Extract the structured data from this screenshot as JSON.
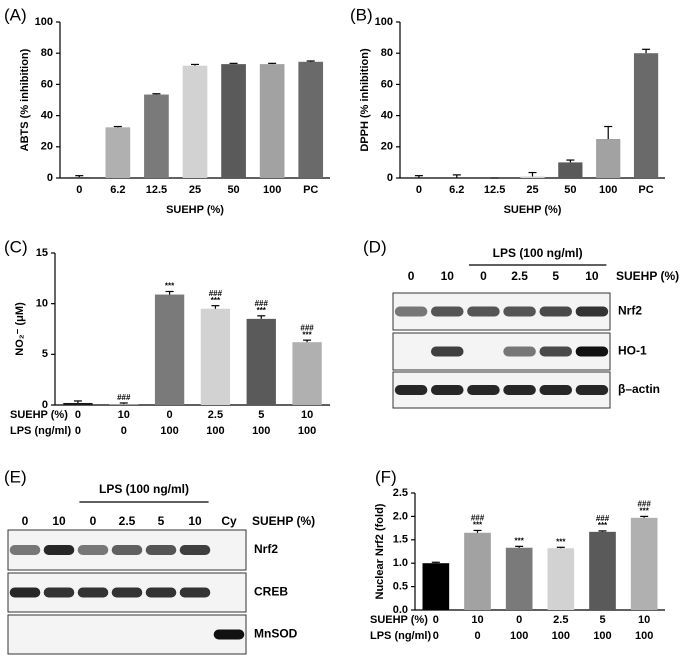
{
  "chart_data": [
    {
      "type": "bar",
      "panel": "(A)",
      "ylabel": "ABTS (% inhibition)",
      "xlabel": "SUEHP  (%)",
      "categories": [
        "0",
        "6.2",
        "12.5",
        "25",
        "50",
        "100",
        "PC"
      ],
      "values": [
        0.5,
        32.5,
        53.5,
        72,
        73,
        73,
        74.5
      ],
      "errors": [
        1,
        0.5,
        0.5,
        0.8,
        0.5,
        0.5,
        0.5
      ],
      "colors": [
        "#3a3a3a",
        "#b0b0b0",
        "#7a7a7a",
        "#d2d2d2",
        "#5a5a5a",
        "#a2a2a2",
        "#6a6a6a"
      ],
      "ylim": [
        0,
        100
      ],
      "yticks": [
        0,
        20,
        40,
        60,
        80,
        100
      ]
    },
    {
      "type": "bar",
      "panel": "(B)",
      "ylabel": "DPPH  (% inhibition)",
      "xlabel": "SUEHP  (%)",
      "categories": [
        "0",
        "6.2",
        "12.5",
        "25",
        "50",
        "100",
        "PC"
      ],
      "values": [
        0,
        0,
        0,
        1,
        10,
        25,
        80
      ],
      "errors": [
        1.5,
        2,
        0,
        2.5,
        1.5,
        8,
        2.5
      ],
      "colors": [
        "#3a3a3a",
        "#b0b0b0",
        "#7a7a7a",
        "#d2d2d2",
        "#5a5a5a",
        "#a2a2a2",
        "#6a6a6a"
      ],
      "ylim": [
        0,
        100
      ],
      "yticks": [
        0,
        20,
        40,
        60,
        80,
        100
      ]
    },
    {
      "type": "bar",
      "panel": "(C)",
      "ylabel": "NO₂⁻ (μM)",
      "category_rows": [
        {
          "label": "SUEHP (%)",
          "labels": [
            "0",
            "10",
            "0",
            "2.5",
            "5",
            "10"
          ]
        },
        {
          "label": "LPS (ng/ml)",
          "labels": [
            "0",
            "0",
            "100",
            "100",
            "100",
            "100"
          ]
        }
      ],
      "values": [
        0.2,
        0.1,
        10.9,
        9.5,
        8.5,
        6.2
      ],
      "errors": [
        0.2,
        0.1,
        0.3,
        0.3,
        0.3,
        0.2
      ],
      "annotations": [
        [],
        [
          "###"
        ],
        [
          "***"
        ],
        [
          "###",
          "***"
        ],
        [
          "###",
          "***"
        ],
        [
          "###",
          "***"
        ]
      ],
      "colors": [
        "#1a1a1a",
        "#a2a2a2",
        "#7a7a7a",
        "#d2d2d2",
        "#5a5a5a",
        "#b0b0b0"
      ],
      "ylim": [
        0,
        15
      ],
      "yticks": [
        0,
        5,
        10,
        15
      ]
    },
    {
      "type": "bar",
      "panel": "(F)",
      "ylabel": "Nuclear Nrf2 (fold)",
      "category_rows": [
        {
          "label": "SUEHP (%)",
          "labels": [
            "0",
            "10",
            "0",
            "2.5",
            "5",
            "10"
          ]
        },
        {
          "label": "LPS (ng/ml)",
          "labels": [
            "0",
            "0",
            "100",
            "100",
            "100",
            "100"
          ]
        }
      ],
      "values": [
        1.0,
        1.65,
        1.33,
        1.32,
        1.67,
        1.97
      ],
      "errors": [
        0.02,
        0.05,
        0.03,
        0.02,
        0.02,
        0.03
      ],
      "annotations": [
        [],
        [
          "###",
          "***"
        ],
        [
          "***"
        ],
        [
          "***"
        ],
        [
          "###",
          "***"
        ],
        [
          "###",
          "***"
        ]
      ],
      "colors": [
        "#000000",
        "#a2a2a2",
        "#7a7a7a",
        "#d2d2d2",
        "#5a5a5a",
        "#b0b0b0"
      ],
      "ylim": [
        0,
        2.5
      ],
      "yticks": [
        {
          "value": 0,
          "label": "0.0"
        },
        {
          "value": 0.5,
          "label": "0.5"
        },
        {
          "value": 1,
          "label": "1.0"
        },
        {
          "value": 1.5,
          "label": "1.5"
        },
        {
          "value": 2,
          "label": "2.0"
        },
        {
          "value": 2.5,
          "label": "2.5"
        }
      ]
    }
  ],
  "blots": [
    {
      "panel": "(D)",
      "treatment": "LPS (100 ng/ml)",
      "lane_title": "SUEHP (%)",
      "lanes": [
        "0",
        "10",
        "0",
        "2.5",
        "5",
        "10"
      ],
      "bands": [
        "Nrf2",
        "HO-1",
        "β–actin"
      ]
    },
    {
      "panel": "(E)",
      "treatment": "LPS (100 ng/ml)",
      "lane_title": "SUEHP (%)",
      "lanes": [
        "0",
        "10",
        "0",
        "2.5",
        "5",
        "10",
        "Cy"
      ],
      "bands": [
        "Nrf2",
        "CREB",
        "MnSOD"
      ]
    }
  ]
}
